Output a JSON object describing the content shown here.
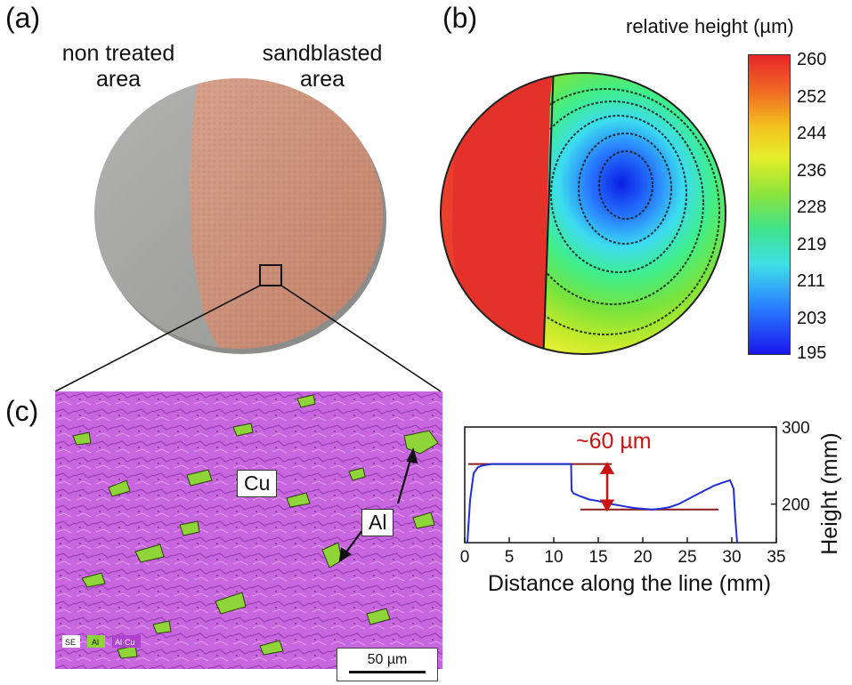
{
  "panels": {
    "a": {
      "label": "(a)",
      "left_caption": [
        "non treated",
        "area"
      ],
      "right_caption": [
        "sandblasted",
        "area"
      ]
    },
    "b": {
      "label": "(b)",
      "colorbar_title": "relative height (µm)",
      "colorbar_ticks": [
        "260",
        "252",
        "244",
        "236",
        "228",
        "219",
        "211",
        "203",
        "195"
      ]
    },
    "c": {
      "label": "(c)",
      "phase_labels": {
        "cu": "Cu",
        "al": "Al"
      },
      "legend_chips": [
        "SE",
        "Al",
        "Al·Cu"
      ],
      "scale_bar": "50 µm"
    }
  },
  "colors": {
    "copper": "#c98b72",
    "aluminium_disc": "#a7a7a5",
    "cu_map": "#cc66e0",
    "al_map": "#8fd53a",
    "profile_line": "#1f2fd8",
    "reference_lines": "#8b1a1a",
    "annotation": "#cc1111"
  },
  "chart_data": {
    "type": "line",
    "title": "",
    "xlabel": "Distance along the line (mm)",
    "ylabel": "Height (mm)",
    "xlim": [
      0,
      35
    ],
    "ylim": [
      150,
      300
    ],
    "x_ticks": [
      "0",
      "5",
      "10",
      "15",
      "20",
      "25",
      "30",
      "35"
    ],
    "y_ticks": [
      "200",
      "300"
    ],
    "y_axis_side": "right",
    "grid": false,
    "annotation": "~60 µm",
    "reference_levels": [
      252,
      193
    ],
    "series": [
      {
        "x": [
          0.3,
          0.6,
          1.0,
          1.5,
          2.0,
          3.0,
          5.0,
          8.0,
          10.0,
          11.5,
          11.95,
          12.0,
          12.2,
          13.0,
          14.0,
          15.0,
          16.0,
          17.0,
          18.0,
          19.0,
          20.0,
          21.0,
          22.0,
          23.0,
          24.0,
          25.0,
          26.0,
          27.0,
          28.0,
          29.0,
          29.8,
          30.2,
          30.4,
          30.6
        ],
        "y": [
          150,
          205,
          240,
          248,
          250,
          252,
          252,
          252,
          252,
          252,
          252,
          218,
          214,
          210,
          206,
          204,
          201,
          199,
          197,
          195,
          194,
          193,
          194,
          196,
          200,
          206,
          212,
          218,
          224,
          228,
          231,
          220,
          180,
          150
        ]
      }
    ]
  }
}
